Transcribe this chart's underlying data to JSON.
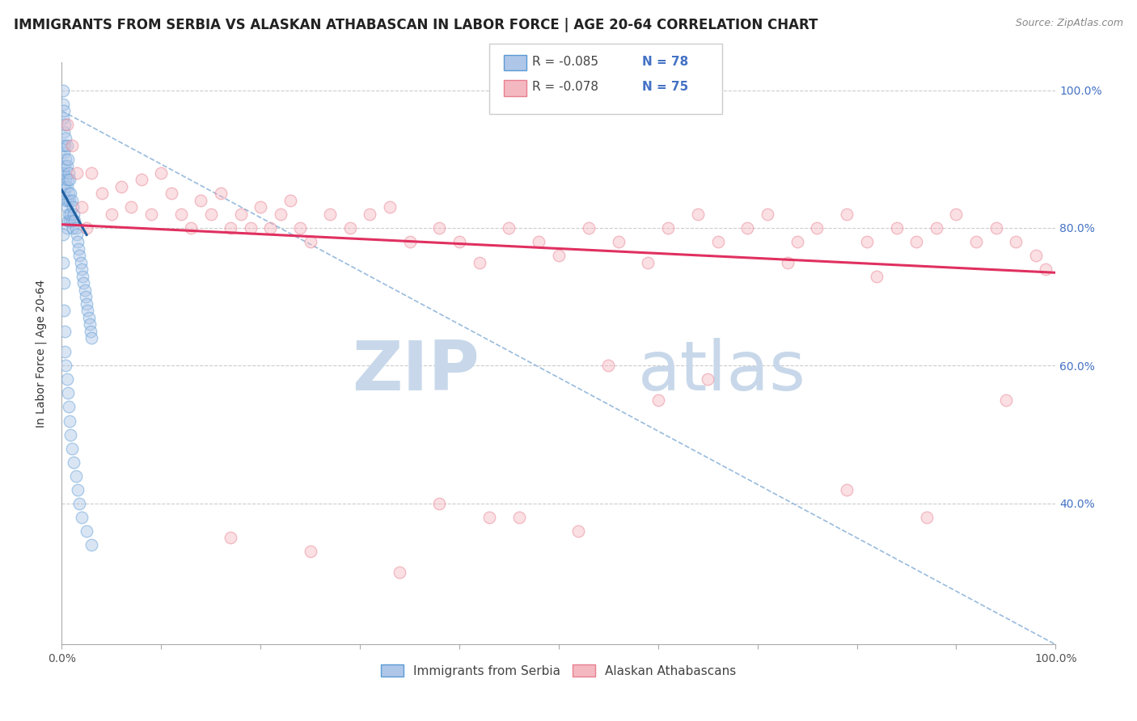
{
  "title": "IMMIGRANTS FROM SERBIA VS ALASKAN ATHABASCAN IN LABOR FORCE | AGE 20-64 CORRELATION CHART",
  "source": "Source: ZipAtlas.com",
  "ylabel": "In Labor Force | Age 20-64",
  "legend_r1": "-0.085",
  "legend_n1": "78",
  "legend_r2": "-0.078",
  "legend_n2": "75",
  "legend_label1": "Immigrants from Serbia",
  "legend_label2": "Alaskan Athabascans",
  "serbia_color": "#aec6e8",
  "athabascan_color": "#f4b8c1",
  "serbia_edge": "#5b9bd5",
  "athabascan_edge": "#e87f8e",
  "serbia_trend_color": "#2060a0",
  "athabascan_trend_color": "#e03060",
  "dashed_trend_color": "#99bbdd",
  "background_color": "#ffffff",
  "watermark_color": "#c8d8ea",
  "serbia_x": [
    0.001,
    0.001,
    0.001,
    0.001,
    0.001,
    0.002,
    0.002,
    0.002,
    0.002,
    0.002,
    0.003,
    0.003,
    0.003,
    0.003,
    0.004,
    0.004,
    0.004,
    0.004,
    0.005,
    0.005,
    0.005,
    0.005,
    0.005,
    0.006,
    0.006,
    0.006,
    0.006,
    0.007,
    0.007,
    0.007,
    0.008,
    0.008,
    0.008,
    0.009,
    0.009,
    0.01,
    0.01,
    0.011,
    0.011,
    0.012,
    0.013,
    0.014,
    0.015,
    0.016,
    0.017,
    0.018,
    0.019,
    0.02,
    0.021,
    0.022,
    0.023,
    0.024,
    0.025,
    0.026,
    0.027,
    0.028,
    0.029,
    0.03,
    0.001,
    0.001,
    0.002,
    0.002,
    0.003,
    0.003,
    0.004,
    0.005,
    0.006,
    0.007,
    0.008,
    0.009,
    0.01,
    0.012,
    0.014,
    0.016,
    0.018,
    0.02,
    0.025,
    0.03
  ],
  "serbia_y": [
    1.0,
    0.98,
    0.96,
    0.92,
    0.88,
    0.97,
    0.94,
    0.91,
    0.88,
    0.85,
    0.95,
    0.92,
    0.89,
    0.86,
    0.93,
    0.9,
    0.87,
    0.84,
    0.92,
    0.89,
    0.86,
    0.83,
    0.8,
    0.9,
    0.87,
    0.84,
    0.81,
    0.88,
    0.85,
    0.82,
    0.87,
    0.84,
    0.81,
    0.85,
    0.82,
    0.84,
    0.81,
    0.83,
    0.8,
    0.82,
    0.81,
    0.8,
    0.79,
    0.78,
    0.77,
    0.76,
    0.75,
    0.74,
    0.73,
    0.72,
    0.71,
    0.7,
    0.69,
    0.68,
    0.67,
    0.66,
    0.65,
    0.64,
    0.79,
    0.75,
    0.72,
    0.68,
    0.65,
    0.62,
    0.6,
    0.58,
    0.56,
    0.54,
    0.52,
    0.5,
    0.48,
    0.46,
    0.44,
    0.42,
    0.4,
    0.38,
    0.36,
    0.34
  ],
  "athabascan_x": [
    0.005,
    0.01,
    0.015,
    0.02,
    0.025,
    0.03,
    0.04,
    0.05,
    0.06,
    0.07,
    0.08,
    0.09,
    0.1,
    0.11,
    0.12,
    0.13,
    0.14,
    0.15,
    0.16,
    0.17,
    0.18,
    0.19,
    0.2,
    0.21,
    0.22,
    0.23,
    0.24,
    0.25,
    0.27,
    0.29,
    0.31,
    0.33,
    0.35,
    0.38,
    0.4,
    0.42,
    0.45,
    0.48,
    0.5,
    0.53,
    0.56,
    0.59,
    0.61,
    0.64,
    0.66,
    0.69,
    0.71,
    0.74,
    0.76,
    0.79,
    0.81,
    0.84,
    0.86,
    0.88,
    0.9,
    0.92,
    0.94,
    0.96,
    0.98,
    0.99,
    0.17,
    0.25,
    0.34,
    0.43,
    0.52,
    0.6,
    0.38,
    0.46,
    0.55,
    0.65,
    0.73,
    0.82,
    0.95,
    0.87,
    0.79
  ],
  "athabascan_y": [
    0.95,
    0.92,
    0.88,
    0.83,
    0.8,
    0.88,
    0.85,
    0.82,
    0.86,
    0.83,
    0.87,
    0.82,
    0.88,
    0.85,
    0.82,
    0.8,
    0.84,
    0.82,
    0.85,
    0.8,
    0.82,
    0.8,
    0.83,
    0.8,
    0.82,
    0.84,
    0.8,
    0.78,
    0.82,
    0.8,
    0.82,
    0.83,
    0.78,
    0.8,
    0.78,
    0.75,
    0.8,
    0.78,
    0.76,
    0.8,
    0.78,
    0.75,
    0.8,
    0.82,
    0.78,
    0.8,
    0.82,
    0.78,
    0.8,
    0.82,
    0.78,
    0.8,
    0.78,
    0.8,
    0.82,
    0.78,
    0.8,
    0.78,
    0.76,
    0.74,
    0.35,
    0.33,
    0.3,
    0.38,
    0.36,
    0.55,
    0.4,
    0.38,
    0.6,
    0.58,
    0.75,
    0.73,
    0.55,
    0.38,
    0.42
  ],
  "serbia_trend_x": [
    0.0,
    0.025
  ],
  "serbia_trend_y": [
    0.855,
    0.79
  ],
  "athabascan_trend_x": [
    0.0,
    1.0
  ],
  "athabascan_trend_y": [
    0.805,
    0.735
  ],
  "dashed_trend_x": [
    0.0,
    1.0
  ],
  "dashed_trend_y": [
    0.97,
    0.195
  ],
  "xlim": [
    0.0,
    1.0
  ],
  "ylim": [
    0.195,
    1.04
  ],
  "ytick_vals": [
    0.4,
    0.6,
    0.8,
    1.0
  ],
  "ytick_labels": [
    "40.0%",
    "60.0%",
    "80.0%",
    "100.0%"
  ],
  "xtick_count": 11,
  "title_fontsize": 12,
  "label_fontsize": 10,
  "tick_fontsize": 10,
  "scatter_size": 110,
  "alpha_fill": 0.45
}
